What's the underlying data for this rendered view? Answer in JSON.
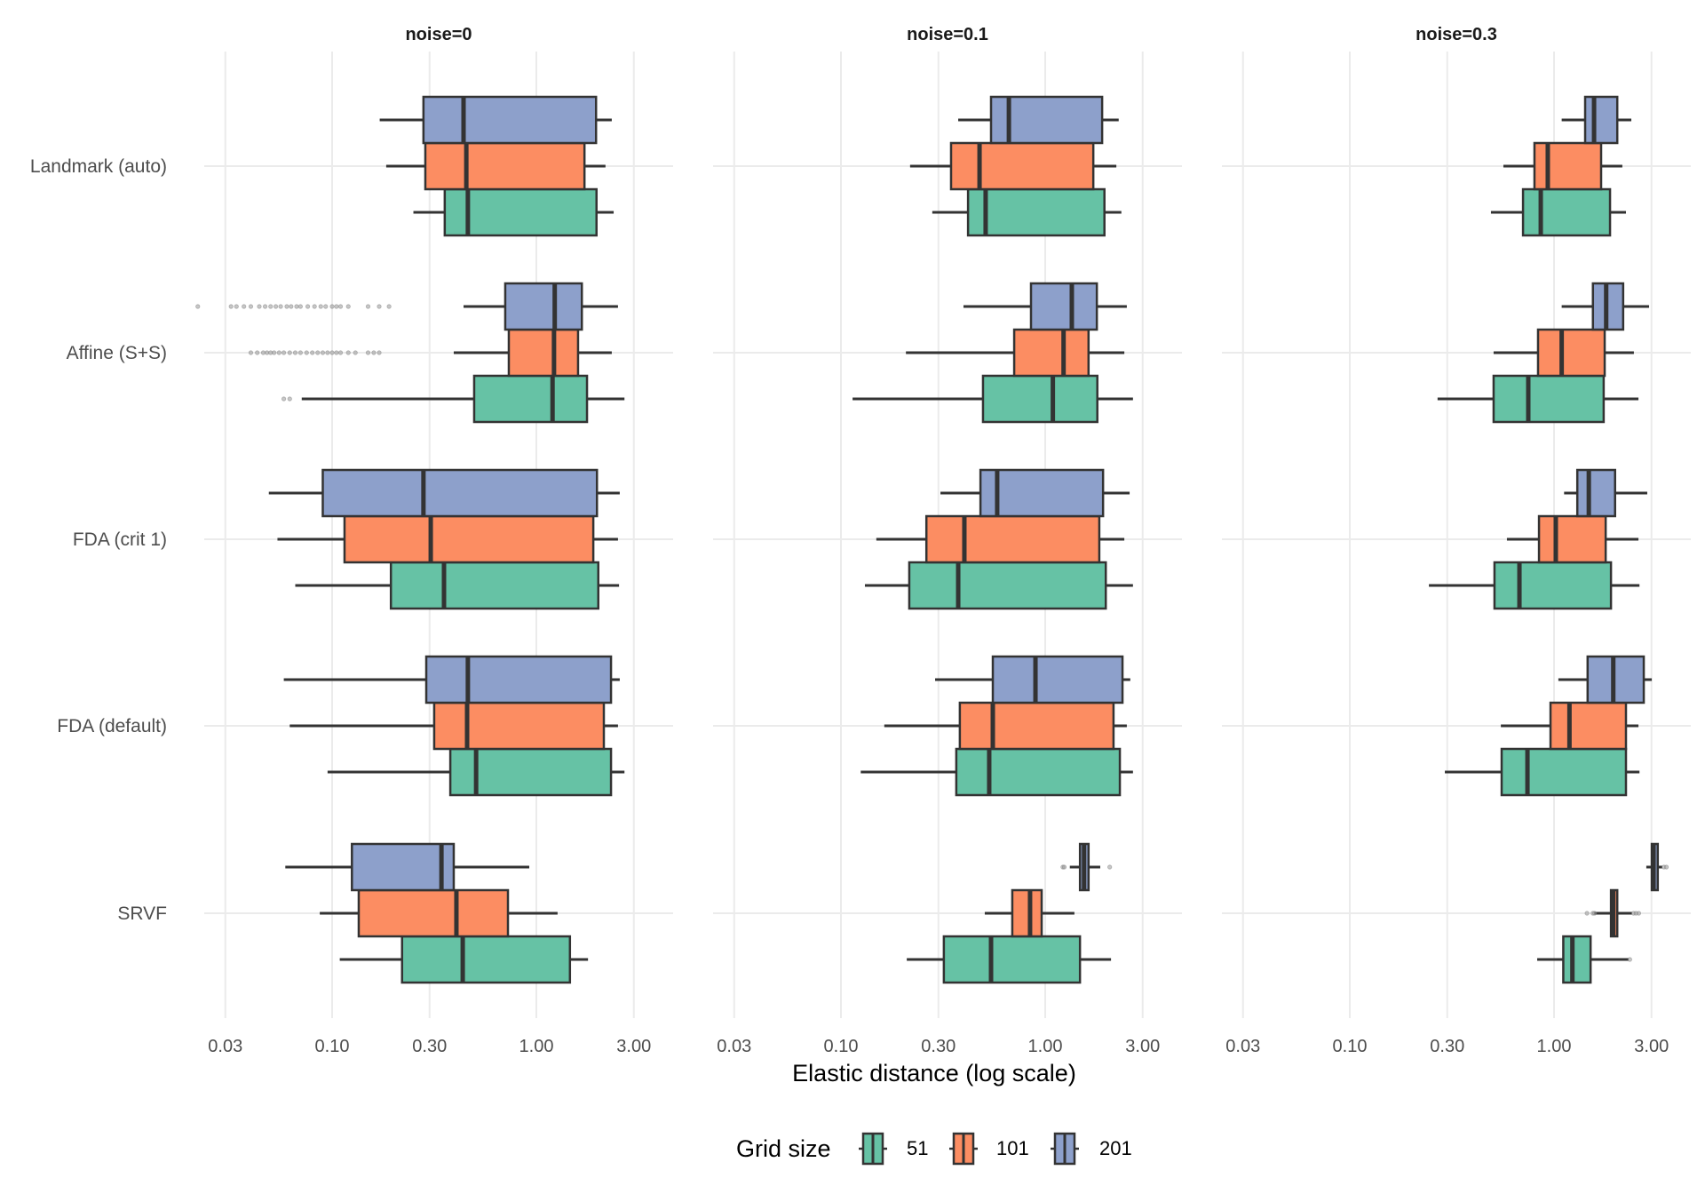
{
  "chart_data": {
    "type": "boxplot",
    "orientation": "horizontal",
    "xlabel": "Elastic distance (log scale)",
    "ylabel": "",
    "x_scale": "log10",
    "xlim": [
      0.02,
      4.2
    ],
    "x_ticks": [
      0.03,
      0.1,
      0.3,
      1.0,
      3.0
    ],
    "x_tick_labels": [
      "0.03",
      "0.10",
      "0.30",
      "1.00",
      "3.00"
    ],
    "grid": true,
    "legend": {
      "title": "Grid size",
      "placement": "bottom",
      "entries": [
        {
          "label": "51",
          "color": "#66c2a5"
        },
        {
          "label": "101",
          "color": "#fc8d62"
        },
        {
          "label": "201",
          "color": "#8da0cb"
        }
      ]
    },
    "categories": [
      "Landmark (auto)",
      "Affine (S+S)",
      "FDA (crit 1)",
      "FDA (default)",
      "SRVF"
    ],
    "series_order": [
      "51",
      "101",
      "201"
    ],
    "panels": [
      {
        "title": "noise=0",
        "groups": {
          "Landmark (auto)": {
            "51": {
              "whisker_low": 0.25,
              "q1": 0.356,
              "median": 0.462,
              "q3": 1.97,
              "whisker_high": 2.39,
              "outliers": []
            },
            "101": {
              "whisker_low": 0.184,
              "q1": 0.286,
              "median": 0.454,
              "q3": 1.72,
              "whisker_high": 2.18,
              "outliers": []
            },
            "201": {
              "whisker_low": 0.171,
              "q1": 0.28,
              "median": 0.44,
              "q3": 1.96,
              "whisker_high": 2.34,
              "outliers": []
            }
          },
          "Affine (S+S)": {
            "51": {
              "whisker_low": 0.071,
              "q1": 0.496,
              "median": 1.2,
              "q3": 1.77,
              "whisker_high": 2.7,
              "outliers": [
                0.058,
                0.062
              ]
            },
            "101": {
              "whisker_low": 0.394,
              "q1": 0.733,
              "median": 1.22,
              "q3": 1.6,
              "whisker_high": 2.34,
              "outliers": [
                0.04,
                0.043,
                0.046,
                0.048,
                0.05,
                0.052,
                0.055,
                0.058,
                0.062,
                0.066,
                0.07,
                0.075,
                0.08,
                0.085,
                0.09,
                0.095,
                0.1,
                0.105,
                0.11,
                0.12,
                0.13,
                0.15,
                0.16,
                0.17
              ]
            },
            "201": {
              "whisker_low": 0.44,
              "q1": 0.704,
              "median": 1.23,
              "q3": 1.67,
              "whisker_high": 2.51,
              "outliers": [
                0.022,
                0.032,
                0.034,
                0.037,
                0.04,
                0.044,
                0.047,
                0.05,
                0.053,
                0.056,
                0.06,
                0.063,
                0.067,
                0.07,
                0.076,
                0.082,
                0.088,
                0.093,
                0.1,
                0.105,
                0.11,
                0.12,
                0.15,
                0.17,
                0.19
              ]
            }
          },
          "FDA (crit 1)": {
            "51": {
              "whisker_low": 0.066,
              "q1": 0.194,
              "median": 0.353,
              "q3": 2.01,
              "whisker_high": 2.54,
              "outliers": []
            },
            "101": {
              "whisker_low": 0.054,
              "q1": 0.115,
              "median": 0.304,
              "q3": 1.9,
              "whisker_high": 2.51,
              "outliers": []
            },
            "201": {
              "whisker_low": 0.049,
              "q1": 0.09,
              "median": 0.28,
              "q3": 1.98,
              "whisker_high": 2.56,
              "outliers": []
            }
          },
          "FDA (default)": {
            "51": {
              "whisker_low": 0.095,
              "q1": 0.379,
              "median": 0.507,
              "q3": 2.32,
              "whisker_high": 2.7,
              "outliers": []
            },
            "101": {
              "whisker_low": 0.062,
              "q1": 0.316,
              "median": 0.458,
              "q3": 2.14,
              "whisker_high": 2.51,
              "outliers": []
            },
            "201": {
              "whisker_low": 0.058,
              "q1": 0.289,
              "median": 0.462,
              "q3": 2.32,
              "whisker_high": 2.56,
              "outliers": []
            }
          },
          "SRVF": {
            "51": {
              "whisker_low": 0.109,
              "q1": 0.22,
              "median": 0.436,
              "q3": 1.46,
              "whisker_high": 1.79,
              "outliers": []
            },
            "101": {
              "whisker_low": 0.087,
              "q1": 0.135,
              "median": 0.406,
              "q3": 0.726,
              "whisker_high": 1.27,
              "outliers": []
            },
            "201": {
              "whisker_low": 0.059,
              "q1": 0.125,
              "median": 0.343,
              "q3": 0.394,
              "whisker_high": 0.923,
              "outliers": []
            }
          }
        }
      },
      {
        "title": "noise=0.1",
        "groups": {
          "Landmark (auto)": {
            "51": {
              "whisker_low": 0.28,
              "q1": 0.419,
              "median": 0.511,
              "q3": 1.95,
              "whisker_high": 2.36,
              "outliers": []
            },
            "101": {
              "whisker_low": 0.218,
              "q1": 0.346,
              "median": 0.477,
              "q3": 1.72,
              "whisker_high": 2.23,
              "outliers": []
            },
            "201": {
              "whisker_low": 0.375,
              "q1": 0.543,
              "median": 0.664,
              "q3": 1.9,
              "whisker_high": 2.29,
              "outliers": []
            }
          },
          "Affine (S+S)": {
            "51": {
              "whisker_low": 0.114,
              "q1": 0.496,
              "median": 1.09,
              "q3": 1.8,
              "whisker_high": 2.69,
              "outliers": []
            },
            "101": {
              "whisker_low": 0.208,
              "q1": 0.705,
              "median": 1.23,
              "q3": 1.63,
              "whisker_high": 2.44,
              "outliers": []
            },
            "201": {
              "whisker_low": 0.398,
              "q1": 0.852,
              "median": 1.35,
              "q3": 1.79,
              "whisker_high": 2.51,
              "outliers": []
            }
          },
          "FDA (crit 1)": {
            "51": {
              "whisker_low": 0.131,
              "q1": 0.216,
              "median": 0.375,
              "q3": 1.98,
              "whisker_high": 2.69,
              "outliers": []
            },
            "101": {
              "whisker_low": 0.149,
              "q1": 0.262,
              "median": 0.402,
              "q3": 1.84,
              "whisker_high": 2.44,
              "outliers": []
            },
            "201": {
              "whisker_low": 0.307,
              "q1": 0.482,
              "median": 0.582,
              "q3": 1.92,
              "whisker_high": 2.59,
              "outliers": []
            }
          },
          "FDA (default)": {
            "51": {
              "whisker_low": 0.125,
              "q1": 0.367,
              "median": 0.532,
              "q3": 2.32,
              "whisker_high": 2.69,
              "outliers": []
            },
            "101": {
              "whisker_low": 0.163,
              "q1": 0.382,
              "median": 0.554,
              "q3": 2.16,
              "whisker_high": 2.51,
              "outliers": []
            },
            "201": {
              "whisker_low": 0.289,
              "q1": 0.554,
              "median": 0.896,
              "q3": 2.39,
              "whisker_high": 2.61,
              "outliers": []
            }
          },
          "SRVF": {
            "51": {
              "whisker_low": 0.21,
              "q1": 0.319,
              "median": 0.543,
              "q3": 1.48,
              "whisker_high": 2.1,
              "outliers": []
            },
            "101": {
              "whisker_low": 0.506,
              "q1": 0.69,
              "median": 0.843,
              "q3": 0.961,
              "whisker_high": 1.39,
              "outliers": []
            },
            "201": {
              "whisker_low": 1.32,
              "q1": 1.48,
              "median": 1.55,
              "q3": 1.63,
              "whisker_high": 1.86,
              "outliers": [
                1.22,
                1.24,
                2.07
              ]
            }
          }
        }
      },
      {
        "title": "noise=0.3",
        "groups": {
          "Landmark (auto)": {
            "51": {
              "whisker_low": 0.491,
              "q1": 0.705,
              "median": 0.861,
              "q3": 1.88,
              "whisker_high": 2.25,
              "outliers": []
            },
            "101": {
              "whisker_low": 0.565,
              "q1": 0.802,
              "median": 0.932,
              "q3": 1.7,
              "whisker_high": 2.16,
              "outliers": []
            },
            "201": {
              "whisker_low": 1.09,
              "q1": 1.42,
              "median": 1.57,
              "q3": 2.04,
              "whisker_high": 2.39,
              "outliers": []
            }
          },
          "Affine (S+S)": {
            "51": {
              "whisker_low": 0.269,
              "q1": 0.506,
              "median": 0.748,
              "q3": 1.75,
              "whisker_high": 2.59,
              "outliers": []
            },
            "101": {
              "whisker_low": 0.506,
              "q1": 0.835,
              "median": 1.09,
              "q3": 1.77,
              "whisker_high": 2.46,
              "outliers": []
            },
            "201": {
              "whisker_low": 1.09,
              "q1": 1.55,
              "median": 1.8,
              "q3": 2.18,
              "whisker_high": 2.92,
              "outliers": []
            }
          },
          "FDA (crit 1)": {
            "51": {
              "whisker_low": 0.244,
              "q1": 0.511,
              "median": 0.677,
              "q3": 1.9,
              "whisker_high": 2.62,
              "outliers": []
            },
            "101": {
              "whisker_low": 0.588,
              "q1": 0.844,
              "median": 1.02,
              "q3": 1.79,
              "whisker_high": 2.59,
              "outliers": []
            },
            "201": {
              "whisker_low": 1.12,
              "q1": 1.3,
              "median": 1.48,
              "q3": 1.99,
              "whisker_high": 2.86,
              "outliers": []
            }
          },
          "FDA (default)": {
            "51": {
              "whisker_low": 0.292,
              "q1": 0.554,
              "median": 0.741,
              "q3": 2.25,
              "whisker_high": 2.62,
              "outliers": []
            },
            "101": {
              "whisker_low": 0.549,
              "q1": 0.961,
              "median": 1.19,
              "q3": 2.25,
              "whisker_high": 2.59,
              "outliers": []
            },
            "201": {
              "whisker_low": 1.05,
              "q1": 1.46,
              "median": 1.95,
              "q3": 2.75,
              "whisker_high": 3.01,
              "outliers": []
            }
          },
          "SRVF": {
            "51": {
              "whisker_low": 0.827,
              "q1": 1.11,
              "median": 1.23,
              "q3": 1.51,
              "whisker_high": 2.32,
              "outliers": [
                2.35
              ]
            },
            "101": {
              "whisker_low": 1.57,
              "q1": 1.9,
              "median": 1.95,
              "q3": 2.04,
              "whisker_high": 2.41,
              "outliers": [
                1.45,
                1.55,
                1.58,
                2.45,
                2.52,
                2.6
              ]
            },
            "201": {
              "whisker_low": 2.83,
              "q1": 3.01,
              "median": 3.07,
              "q3": 3.22,
              "whisker_high": 3.39,
              "outliers": [
                3.45,
                3.55
              ]
            }
          }
        }
      }
    ]
  }
}
